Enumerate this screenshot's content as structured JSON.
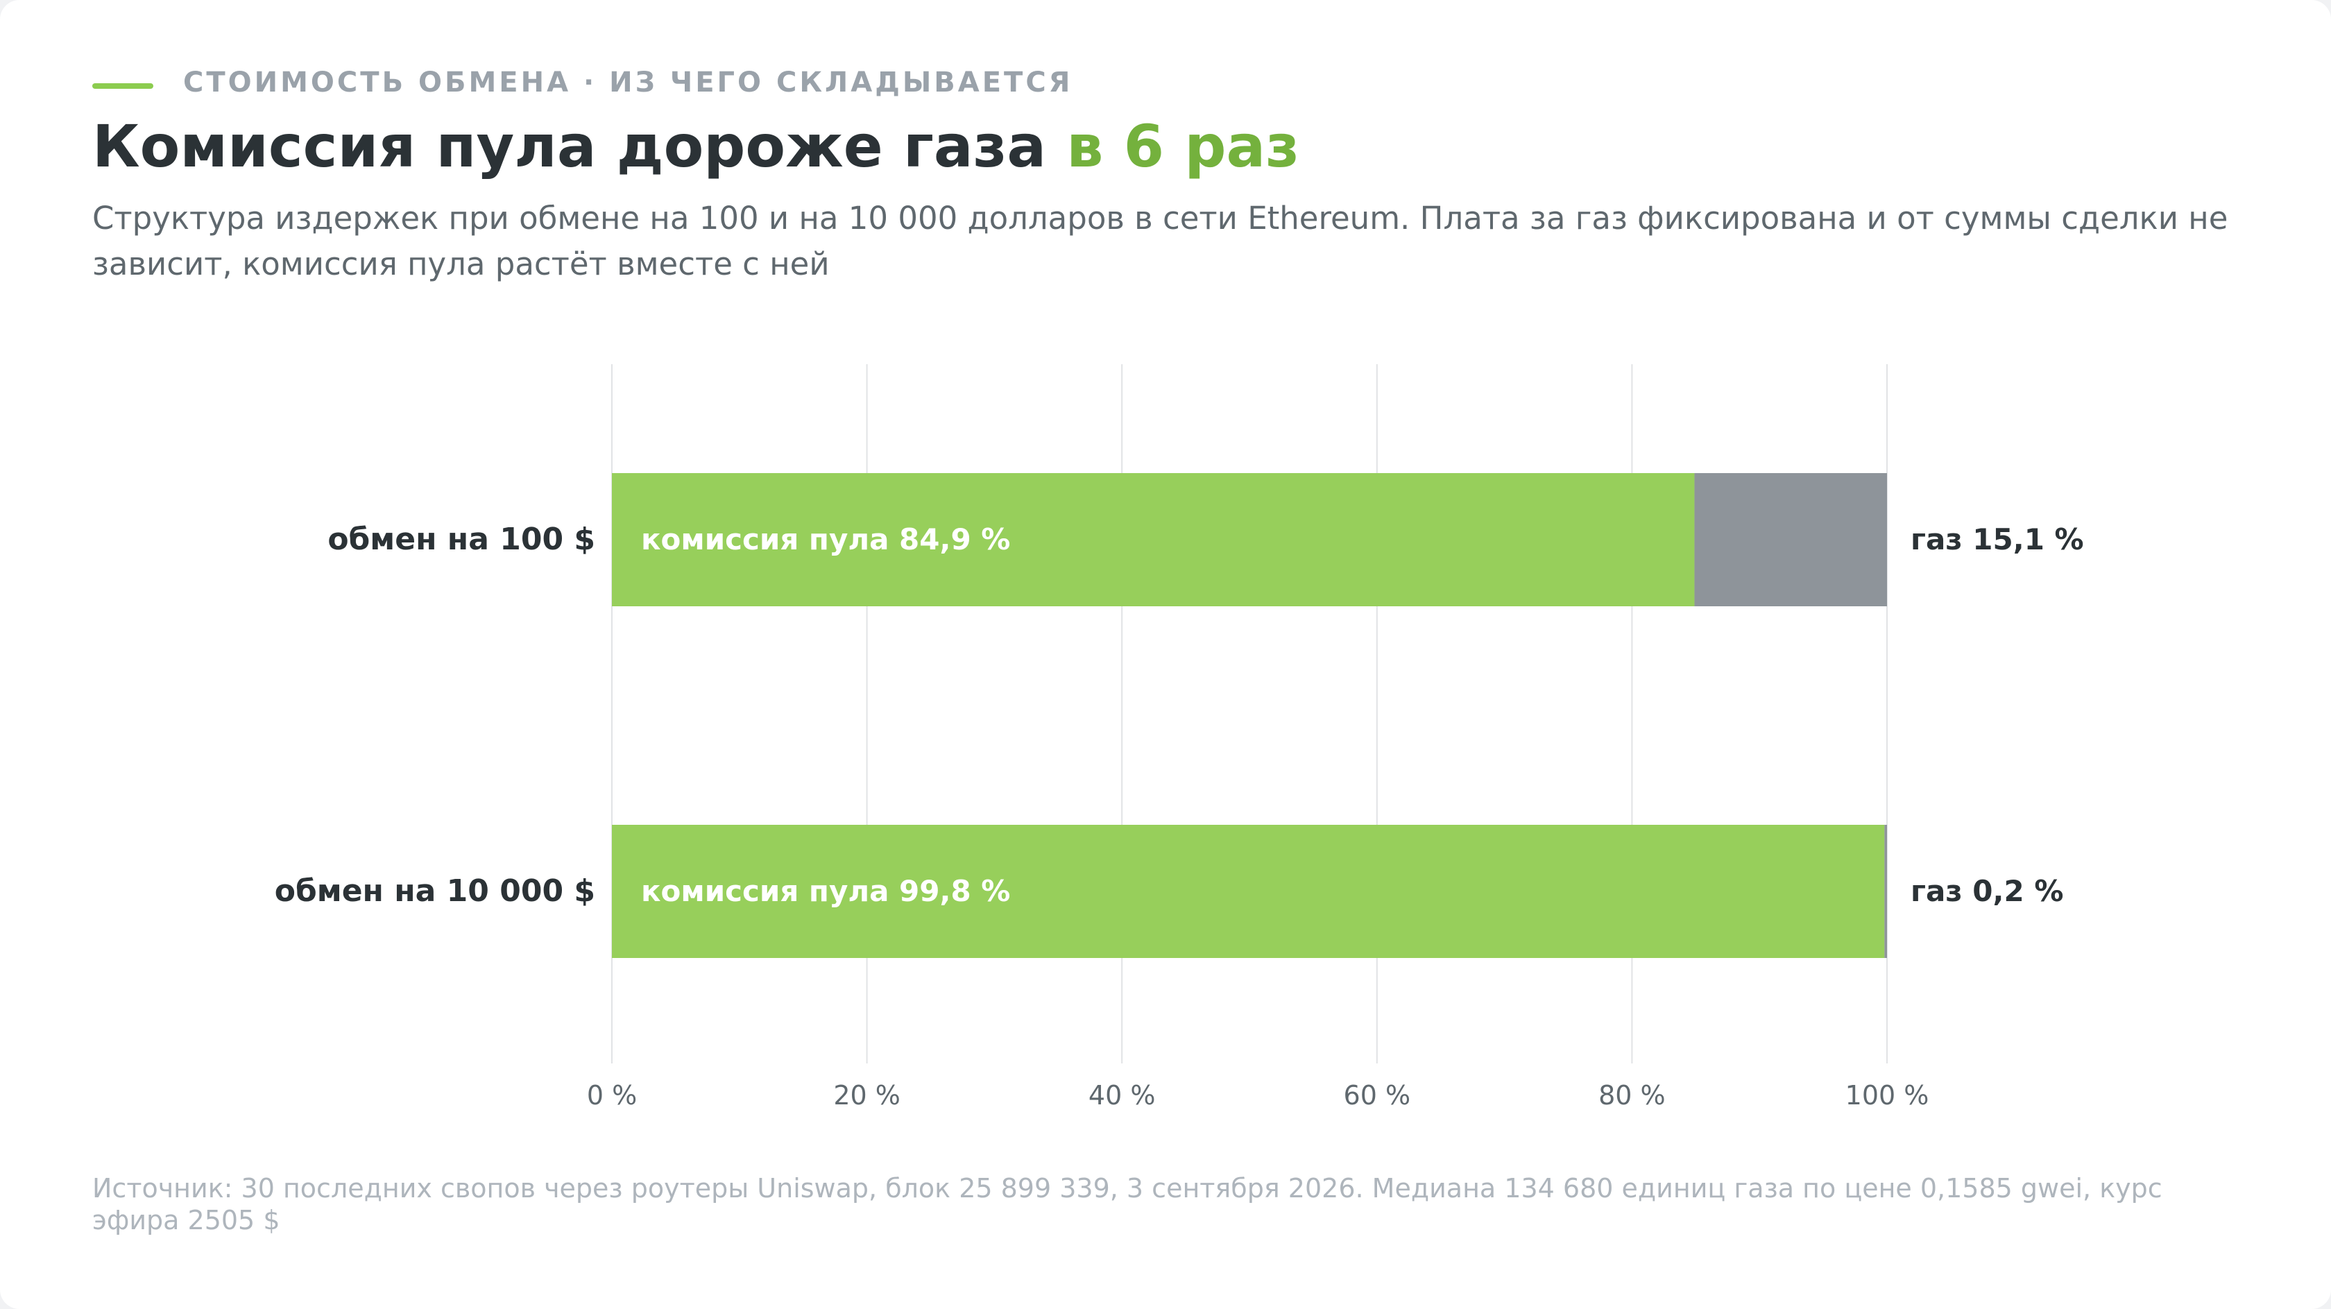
{
  "header": {
    "kicker": "СТОИМОСТЬ ОБМЕНА · ИЗ ЧЕГО СКЛАДЫВАЕТСЯ",
    "title_main": "Комиссия пула дороже газа",
    "title_accent": "в 6 раз",
    "subtitle": "Структура издержек при обмене на 100 и на 10 000 долларов в сети Ethereum. Плата за газ фиксирована и от суммы сделки не зависит, комиссия пула растёт вместе с ней"
  },
  "colors": {
    "pool": "#97cf5b",
    "gas": "#8e949a",
    "accent": "#74b13d",
    "grid": "#e1e3e5"
  },
  "chart_data": {
    "type": "bar",
    "orientation": "horizontal",
    "stacked": true,
    "categories": [
      "обмен на 100 $",
      "обмен на 10 000 $"
    ],
    "series": [
      {
        "name": "комиссия пула",
        "values": [
          84.9,
          99.8
        ],
        "labels": [
          "комиссия пула  84,9 %",
          "комиссия пула  99,8 %"
        ]
      },
      {
        "name": "газ",
        "values": [
          15.1,
          0.2
        ],
        "labels": [
          "газ 15,1 %",
          "газ 0,2 %"
        ]
      }
    ],
    "xlim": [
      0,
      100
    ],
    "xticks": [
      0,
      20,
      40,
      60,
      80,
      100
    ],
    "xtick_labels": [
      "0 %",
      "20 %",
      "40 %",
      "60 %",
      "80 %",
      "100 %"
    ],
    "grid": true,
    "legend": "none"
  },
  "footnote": "Источник: 30 последних свопов через роутеры Uniswap, блок 25 899 339, 3 сентября 2026. Медиана 134 680 единиц газа по цене 0,1585 gwei, курс эфира 2505 $"
}
